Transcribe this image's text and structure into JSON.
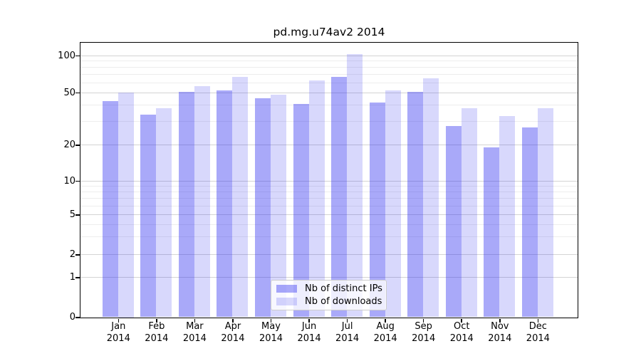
{
  "chart_data": {
    "type": "bar",
    "title": "pd.mg.u74av2 2014",
    "categories": [
      "Jan",
      "Feb",
      "Mar",
      "Apr",
      "May",
      "Jun",
      "Jul",
      "Aug",
      "Sep",
      "Oct",
      "Nov",
      "Dec"
    ],
    "year": "2014",
    "series": [
      {
        "name": "Nb of distinct IPs",
        "color": "rgba(40,40,240,0.40)",
        "values": [
          43,
          34,
          51,
          52,
          45,
          41,
          67,
          42,
          51,
          28,
          19,
          27
        ]
      },
      {
        "name": "Nb of downloads",
        "color": "rgba(40,40,240,0.18)",
        "values": [
          50,
          38,
          56,
          67,
          48,
          63,
          103,
          52,
          65,
          38,
          33,
          38
        ]
      }
    ],
    "xlabel": "",
    "ylabel": "",
    "yscale": "symlog",
    "yticks": [
      0,
      1,
      2,
      5,
      10,
      20,
      50,
      100
    ],
    "minor_yticks": [
      3,
      4,
      6,
      7,
      8,
      9,
      30,
      40,
      60,
      70,
      80,
      90
    ],
    "ylim": [
      0,
      128
    ],
    "grid": true,
    "legend": {
      "position": "lower center"
    }
  }
}
